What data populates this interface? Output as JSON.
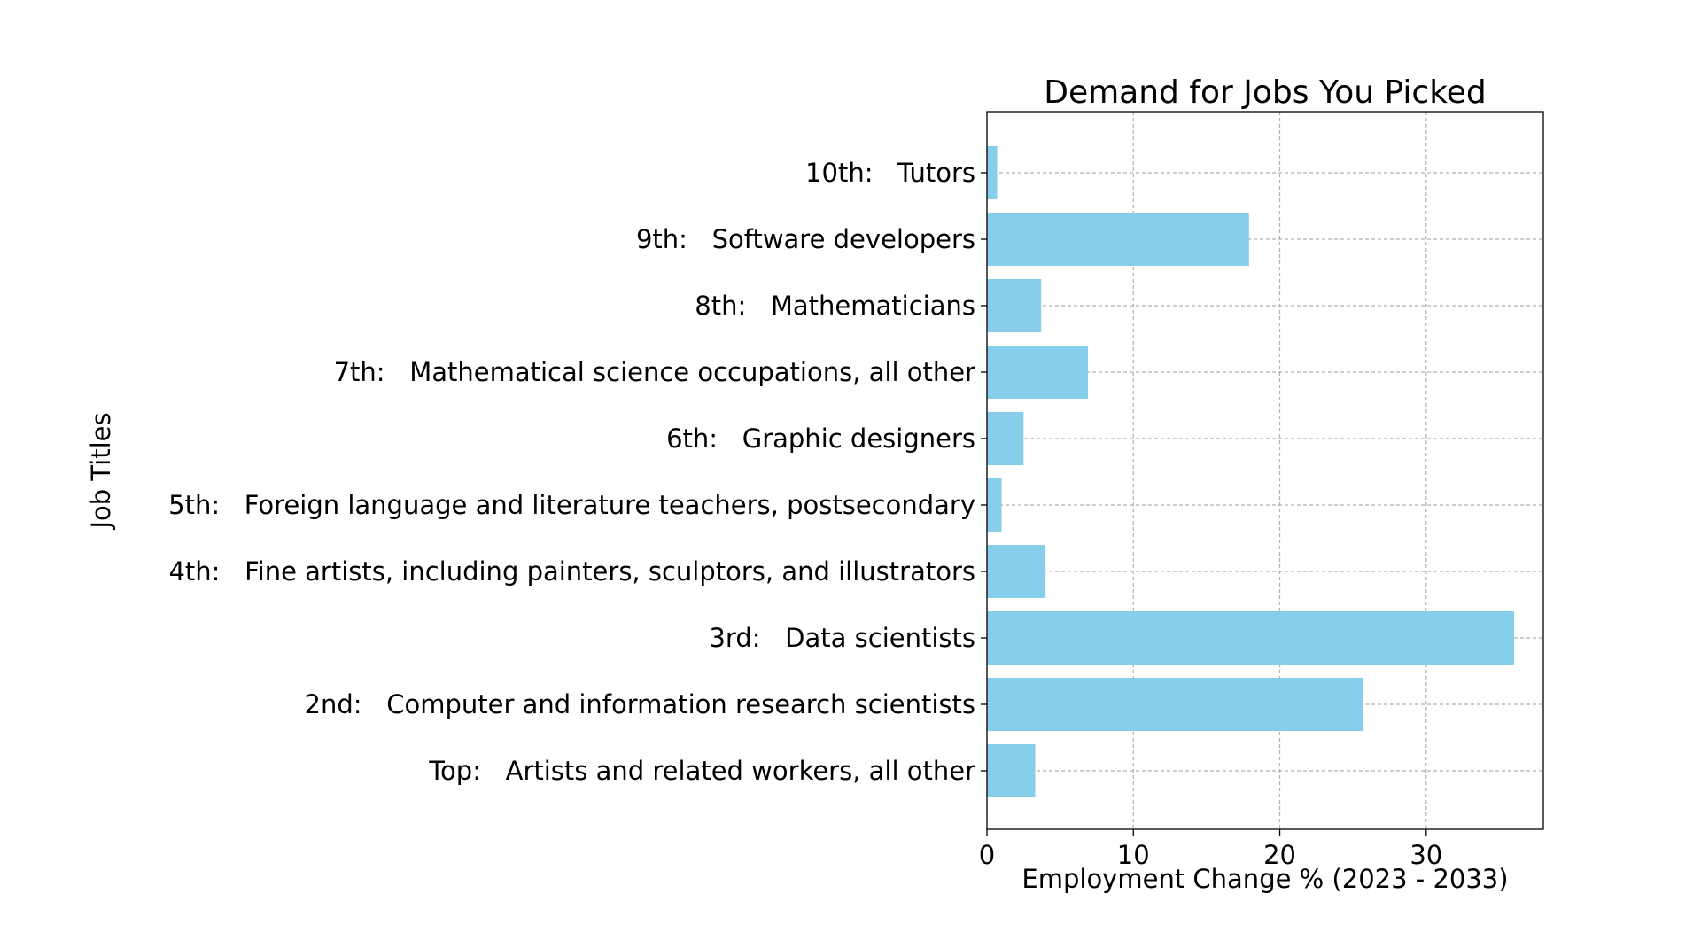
{
  "chart_data": {
    "type": "bar",
    "orientation": "horizontal",
    "title": "Demand for Jobs You Picked",
    "xlabel": "Employment Change % (2023 - 2033)",
    "ylabel": "Job Titles",
    "xlim": [
      0,
      38
    ],
    "xticks": [
      0,
      10,
      20,
      30
    ],
    "grid": true,
    "bar_color": "#87ceeb",
    "categories": [
      "Top:   Artists and related workers, all other",
      "2nd:   Computer and information research scientists",
      "3rd:   Data scientists",
      "4th:   Fine artists, including painters, sculptors, and illustrators",
      "5th:   Foreign language and literature teachers, postsecondary",
      "6th:   Graphic designers",
      "7th:   Mathematical science occupations, all other",
      "8th:   Mathematicians",
      "9th:   Software developers",
      "10th:   Tutors"
    ],
    "values": [
      3.3,
      25.7,
      36.0,
      4.0,
      1.0,
      2.5,
      6.9,
      3.7,
      17.9,
      0.7
    ]
  }
}
